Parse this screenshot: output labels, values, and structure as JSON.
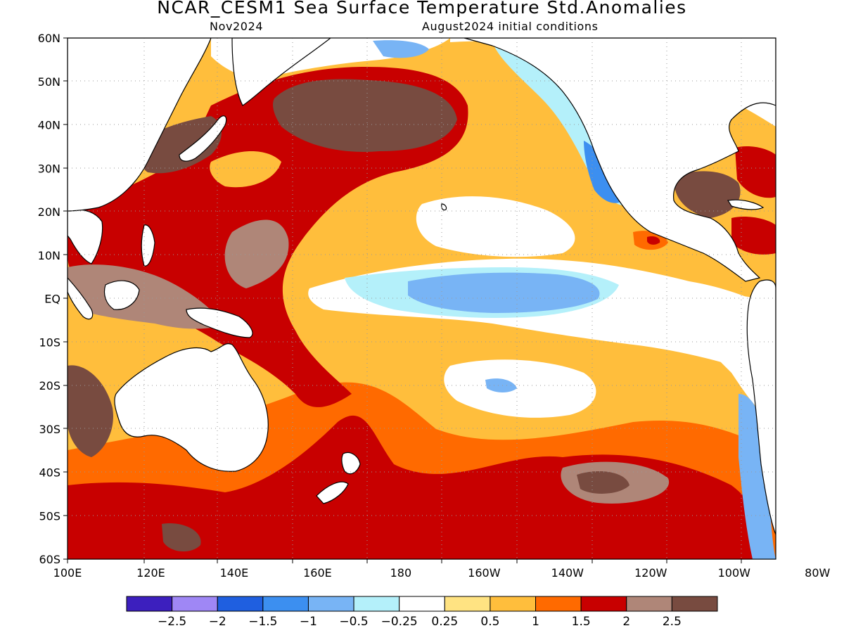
{
  "header": {
    "title": "NCAR_CESM1 Sea Surface Temperature Std.Anomalies",
    "subtitle_left": "Nov2024",
    "subtitle_right": "August2024 initial conditions"
  },
  "map": {
    "lat_ticks": [
      "60N",
      "50N",
      "40N",
      "30N",
      "20N",
      "10N",
      "EQ",
      "10S",
      "20S",
      "30S",
      "40S",
      "50S",
      "60S"
    ],
    "lon_ticks": [
      "100E",
      "120E",
      "140E",
      "160E",
      "180",
      "160W",
      "140W",
      "120W",
      "100W",
      "80W"
    ]
  },
  "colorbar": {
    "colors": [
      "#3c1fbe",
      "#9f87f5",
      "#1f5fe0",
      "#3c8ff0",
      "#78b4f5",
      "#b4f0fa",
      "#ffffff",
      "#ffe382",
      "#ffbe3c",
      "#ff6a00",
      "#c80000",
      "#af8678",
      "#784b40"
    ],
    "labels": [
      "−2.5",
      "−2",
      "−1.5",
      "−1",
      "−0.5",
      "−0.25",
      "0.25",
      "0.5",
      "1",
      "1.5",
      "2",
      "2.5"
    ]
  },
  "colors": {
    "land": "#ffffff",
    "coast": "#000000",
    "grid": "#9a9a9a"
  }
}
